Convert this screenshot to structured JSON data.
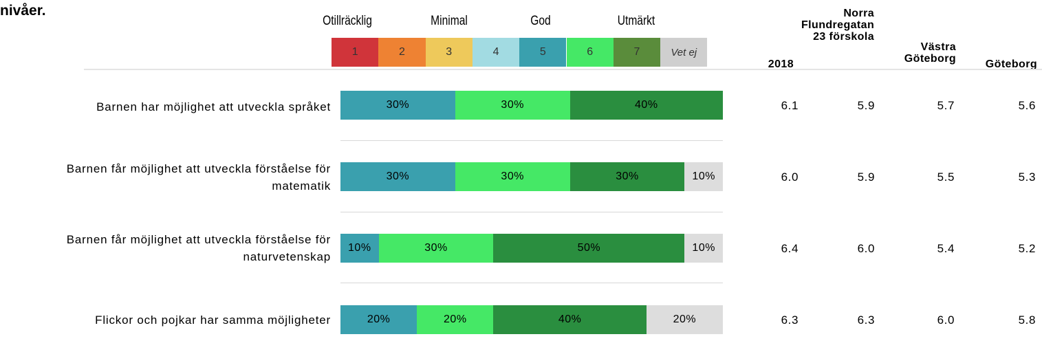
{
  "heading": "nivåer.",
  "scale_labels": [
    "Otillräcklig",
    "Minimal",
    "God",
    "Utmärkt"
  ],
  "legend": [
    {
      "label": "1",
      "color": "#d0343a"
    },
    {
      "label": "2",
      "color": "#ee8233"
    },
    {
      "label": "3",
      "color": "#eec95b"
    },
    {
      "label": "4",
      "color": "#a2dbe2"
    },
    {
      "label": "5",
      "color": "#3aa0ae"
    },
    {
      "label": "6",
      "color": "#45e866"
    },
    {
      "label": "7",
      "color": "#5a8c3b"
    },
    {
      "label": "Vet ej",
      "color": "#cfcfcf"
    }
  ],
  "column_headers": [
    "2018",
    "Norra Flundregatan 23 förskola",
    "Västra Göteborg",
    "Göteborg"
  ],
  "chart_data": {
    "type": "bar",
    "stacked": "horizontal-100",
    "categories": [
      "Barnen har möjlighet att utveckla språket",
      "Barnen får möjlighet att utveckla förståelse för matematik",
      "Barnen får möjlighet att utveckla förståelse för naturvetenskap",
      "Flickor och pojkar har samma möjligheter"
    ],
    "series": [
      {
        "name": "5",
        "color": "#3aa0ae",
        "values": [
          30,
          30,
          10,
          20
        ]
      },
      {
        "name": "6",
        "color": "#45e866",
        "values": [
          30,
          30,
          30,
          20
        ]
      },
      {
        "name": "7",
        "color": "#2a8e3f",
        "values": [
          40,
          30,
          50,
          40
        ]
      },
      {
        "name": "Vet ej",
        "color": "#dddddd",
        "values": [
          0,
          10,
          10,
          20
        ]
      }
    ],
    "value_suffix": "%",
    "table": [
      {
        "2018": "6.1",
        "Norra Flundregatan 23 förskola": "5.9",
        "Västra Göteborg": "5.7",
        "Göteborg": "5.6"
      },
      {
        "2018": "6.0",
        "Norra Flundregatan 23 förskola": "5.9",
        "Västra Göteborg": "5.5",
        "Göteborg": "5.3"
      },
      {
        "2018": "6.4",
        "Norra Flundregatan 23 förskola": "6.0",
        "Västra Göteborg": "5.4",
        "Göteborg": "5.2"
      },
      {
        "2018": "6.3",
        "Norra Flundregatan 23 förskola": "6.3",
        "Västra Göteborg": "6.0",
        "Göteborg": "5.8"
      }
    ]
  }
}
